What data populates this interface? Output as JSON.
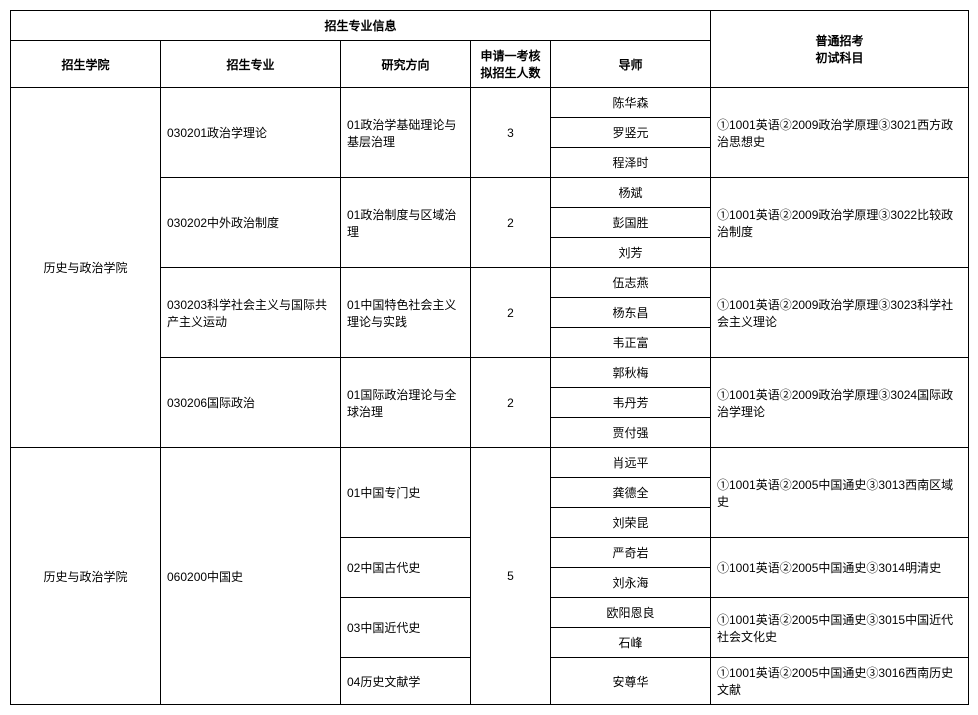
{
  "headers": {
    "group_title": "招生专业信息",
    "exam_subject_header": "普通招考\n初试科目",
    "sub": {
      "college": "招生学院",
      "major": "招生专业",
      "direction": "研究方向",
      "quota": "申请一考核拟招生人数",
      "advisor": "导师"
    }
  },
  "col_widths": {
    "college": 150,
    "major": 180,
    "direction": 130,
    "quota": 80,
    "advisor": 160,
    "exam": 258
  },
  "rows": [
    {
      "college": "历史与政治学院",
      "college_rowspan": 12,
      "majors": [
        {
          "major": "030201政治学理论",
          "direction": "01政治学基础理论与基层治理",
          "quota": "3",
          "advisors": [
            "陈华森",
            "罗竖元",
            "程泽时"
          ],
          "exam": "①1001英语②2009政治学原理③3021西方政治思想史"
        },
        {
          "major": "030202中外政治制度",
          "direction": "01政治制度与区域治理",
          "quota": "2",
          "advisors": [
            "杨斌",
            "彭国胜",
            "刘芳"
          ],
          "exam": "①1001英语②2009政治学原理③3022比较政治制度"
        },
        {
          "major": "030203科学社会主义与国际共产主义运动",
          "direction": "01中国特色社会主义理论与实践",
          "quota": "2",
          "advisors": [
            "伍志燕",
            "杨东昌",
            "韦正富"
          ],
          "exam": "①1001英语②2009政治学原理③3023科学社会主义理论"
        },
        {
          "major": "030206国际政治",
          "direction": "01国际政治理论与全球治理",
          "quota": "2",
          "advisors": [
            "郭秋梅",
            "韦丹芳",
            "贾付强"
          ],
          "exam": "①1001英语②2009政治学原理③3024国际政治学理论"
        }
      ]
    },
    {
      "college": "历史与政治学院",
      "college_rowspan": 8,
      "major_block": {
        "major": "060200中国史",
        "major_rowspan": 8,
        "quota": "5",
        "quota_rowspan": 8,
        "directions": [
          {
            "direction": "01中国专门史",
            "advisors": [
              "肖远平",
              "龚德全",
              "刘荣昆"
            ],
            "exam": "①1001英语②2005中国通史③3013西南区域史"
          },
          {
            "direction": "02中国古代史",
            "advisors": [
              "严奇岩",
              "刘永海"
            ],
            "exam": "①1001英语②2005中国通史③3014明清史"
          },
          {
            "direction": "03中国近代史",
            "advisors": [
              "欧阳恩良",
              "石峰"
            ],
            "exam": "①1001英语②2005中国通史③3015中国近代社会文化史"
          },
          {
            "direction": "04历史文献学",
            "advisors": [
              "安尊华"
            ],
            "exam": "①1001英语②2005中国通史③3016西南历史文献"
          }
        ]
      }
    }
  ]
}
